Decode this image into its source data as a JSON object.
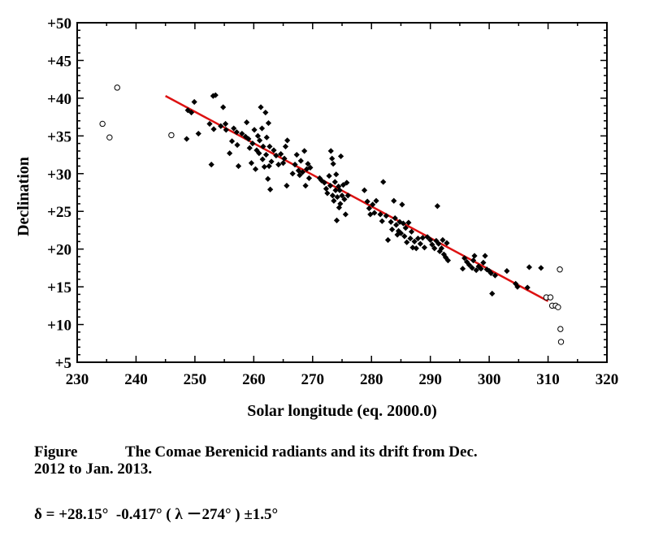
{
  "chart_data": {
    "type": "scatter",
    "xlabel": "Solar longitude (eq. 2000.0)",
    "ylabel": "Declination",
    "xlim": [
      230,
      320
    ],
    "ylim": [
      5,
      50
    ],
    "x_ticks": [
      "230",
      "240",
      "250",
      "260",
      "270",
      "280",
      "290",
      "300",
      "310",
      "320"
    ],
    "y_ticks": [
      "+5",
      "+10",
      "+15",
      "+20",
      "+25",
      "+30",
      "+35",
      "+40",
      "+45",
      "+50"
    ],
    "grid": false,
    "legend": "none",
    "colors": {
      "fit_line": "#dd1111",
      "points": "#000000"
    },
    "series": [
      {
        "marker": "filled-diamond",
        "points": [
          [
            248.6,
            34.6
          ],
          [
            248.8,
            38.4
          ],
          [
            249.4,
            38.1
          ],
          [
            249.9,
            39.5
          ],
          [
            250.6,
            35.3
          ],
          [
            252.5,
            36.6
          ],
          [
            252.8,
            31.2
          ],
          [
            253.1,
            40.3
          ],
          [
            253.5,
            40.4
          ],
          [
            253.2,
            35.9
          ],
          [
            254.4,
            36.3
          ],
          [
            254.8,
            38.8
          ],
          [
            255.2,
            36.6
          ],
          [
            255.3,
            35.8
          ],
          [
            255.9,
            32.7
          ],
          [
            256.3,
            34.3
          ],
          [
            256.6,
            36.0
          ],
          [
            257.1,
            35.5
          ],
          [
            257.4,
            31.0
          ],
          [
            257.2,
            33.8
          ],
          [
            258.0,
            35.3
          ],
          [
            258.6,
            34.9
          ],
          [
            258.8,
            36.8
          ],
          [
            259.1,
            34.6
          ],
          [
            259.3,
            33.4
          ],
          [
            259.6,
            31.4
          ],
          [
            259.8,
            34.0
          ],
          [
            260.1,
            35.8
          ],
          [
            260.3,
            30.6
          ],
          [
            260.5,
            33.1
          ],
          [
            260.7,
            35.0
          ],
          [
            260.9,
            32.7
          ],
          [
            261.0,
            34.4
          ],
          [
            261.2,
            38.8
          ],
          [
            261.4,
            36.0
          ],
          [
            261.5,
            31.9
          ],
          [
            261.6,
            33.6
          ],
          [
            261.8,
            30.9
          ],
          [
            262.0,
            38.1
          ],
          [
            262.1,
            32.5
          ],
          [
            262.2,
            34.8
          ],
          [
            262.4,
            29.3
          ],
          [
            262.5,
            36.7
          ],
          [
            262.6,
            31.0
          ],
          [
            262.7,
            33.6
          ],
          [
            262.8,
            27.9
          ],
          [
            263.0,
            31.6
          ],
          [
            263.4,
            33.1
          ],
          [
            263.8,
            32.4
          ],
          [
            264.2,
            31.2
          ],
          [
            264.6,
            32.6
          ],
          [
            265.0,
            31.4
          ],
          [
            265.2,
            32.0
          ],
          [
            265.4,
            33.6
          ],
          [
            265.6,
            28.4
          ],
          [
            265.7,
            34.4
          ],
          [
            266.6,
            30.0
          ],
          [
            267.0,
            31.2
          ],
          [
            267.3,
            32.5
          ],
          [
            267.6,
            30.4
          ],
          [
            267.8,
            29.8
          ],
          [
            268.0,
            31.7
          ],
          [
            268.3,
            30.2
          ],
          [
            268.6,
            33.0
          ],
          [
            268.8,
            28.4
          ],
          [
            269.0,
            30.6
          ],
          [
            269.2,
            31.3
          ],
          [
            269.4,
            29.4
          ],
          [
            269.6,
            30.8
          ],
          [
            271.2,
            29.4
          ],
          [
            271.5,
            29.1
          ],
          [
            272.0,
            28.8
          ],
          [
            272.3,
            28.0
          ],
          [
            272.5,
            27.4
          ],
          [
            272.8,
            29.7
          ],
          [
            273.0,
            28.4
          ],
          [
            273.1,
            33.0
          ],
          [
            273.3,
            32.0
          ],
          [
            273.4,
            27.1
          ],
          [
            273.5,
            31.3
          ],
          [
            273.6,
            26.4
          ],
          [
            273.8,
            28.9
          ],
          [
            273.9,
            27.8
          ],
          [
            274.0,
            29.9
          ],
          [
            274.1,
            23.8
          ],
          [
            274.2,
            26.9
          ],
          [
            274.4,
            28.3
          ],
          [
            274.5,
            25.5
          ],
          [
            274.6,
            27.8
          ],
          [
            274.7,
            26.0
          ],
          [
            274.8,
            32.3
          ],
          [
            275.0,
            27.1
          ],
          [
            275.2,
            28.5
          ],
          [
            275.4,
            26.6
          ],
          [
            275.6,
            24.6
          ],
          [
            275.8,
            28.8
          ],
          [
            276.0,
            27.1
          ],
          [
            278.8,
            27.8
          ],
          [
            279.3,
            26.3
          ],
          [
            279.6,
            25.4
          ],
          [
            279.8,
            24.6
          ],
          [
            280.2,
            25.9
          ],
          [
            280.5,
            24.8
          ],
          [
            280.8,
            26.4
          ],
          [
            281.5,
            24.6
          ],
          [
            281.8,
            23.7
          ],
          [
            282.0,
            28.9
          ],
          [
            282.5,
            24.4
          ],
          [
            282.8,
            21.2
          ],
          [
            283.3,
            23.6
          ],
          [
            283.5,
            22.6
          ],
          [
            283.8,
            26.4
          ],
          [
            284.0,
            24.1
          ],
          [
            284.2,
            23.2
          ],
          [
            284.4,
            21.9
          ],
          [
            284.6,
            22.4
          ],
          [
            284.8,
            23.6
          ],
          [
            285.0,
            22.1
          ],
          [
            285.2,
            25.9
          ],
          [
            285.4,
            23.4
          ],
          [
            285.6,
            21.7
          ],
          [
            285.8,
            22.8
          ],
          [
            286.0,
            20.9
          ],
          [
            286.3,
            23.5
          ],
          [
            286.6,
            21.4
          ],
          [
            286.8,
            22.3
          ],
          [
            287.0,
            20.2
          ],
          [
            287.3,
            21.0
          ],
          [
            287.6,
            20.1
          ],
          [
            287.9,
            21.4
          ],
          [
            288.3,
            20.7
          ],
          [
            288.7,
            21.5
          ],
          [
            289.0,
            20.2
          ],
          [
            289.5,
            21.6
          ],
          [
            290.0,
            21.2
          ],
          [
            290.3,
            20.6
          ],
          [
            290.7,
            20.1
          ],
          [
            291.0,
            21.1
          ],
          [
            291.2,
            25.7
          ],
          [
            291.4,
            20.7
          ],
          [
            291.6,
            19.7
          ],
          [
            291.9,
            20.1
          ],
          [
            292.1,
            21.2
          ],
          [
            292.3,
            19.3
          ],
          [
            292.6,
            18.9
          ],
          [
            292.8,
            20.8
          ],
          [
            293.0,
            18.5
          ],
          [
            295.5,
            17.4
          ],
          [
            295.8,
            18.8
          ],
          [
            296.2,
            18.3
          ],
          [
            296.6,
            17.9
          ],
          [
            297.1,
            17.5
          ],
          [
            297.3,
            18.5
          ],
          [
            297.5,
            19.1
          ],
          [
            297.8,
            17.2
          ],
          [
            298.2,
            17.7
          ],
          [
            298.6,
            17.4
          ],
          [
            299.0,
            18.2
          ],
          [
            299.3,
            19.1
          ],
          [
            299.6,
            17.3
          ],
          [
            300.0,
            17.1
          ],
          [
            300.3,
            16.8
          ],
          [
            300.5,
            14.1
          ],
          [
            301.0,
            16.5
          ],
          [
            303.0,
            17.1
          ],
          [
            304.5,
            15.4
          ],
          [
            304.8,
            15.0
          ],
          [
            306.5,
            14.9
          ],
          [
            306.8,
            17.6
          ],
          [
            308.8,
            17.5
          ]
        ]
      },
      {
        "marker": "open-circle",
        "points": [
          [
            234.3,
            36.6
          ],
          [
            235.5,
            34.8
          ],
          [
            236.8,
            41.4
          ],
          [
            246.0,
            35.1
          ],
          [
            309.7,
            13.6
          ],
          [
            310.4,
            13.6
          ],
          [
            310.7,
            12.5
          ],
          [
            311.3,
            12.5
          ],
          [
            311.7,
            12.3
          ],
          [
            312.0,
            17.3
          ],
          [
            312.1,
            9.4
          ],
          [
            312.2,
            7.7
          ]
        ]
      }
    ],
    "fit_line": {
      "x": [
        245.0,
        310.0
      ],
      "y": [
        40.3,
        13.1
      ]
    }
  },
  "caption": {
    "label": "Figure",
    "line1": "The Comae Berenicid radiants and its drift from Dec.",
    "line2": "2012 to Jan. 2013.",
    "formula": "δ = +28.15°  -0.417° ( λ －274° ) ±1.5°"
  }
}
